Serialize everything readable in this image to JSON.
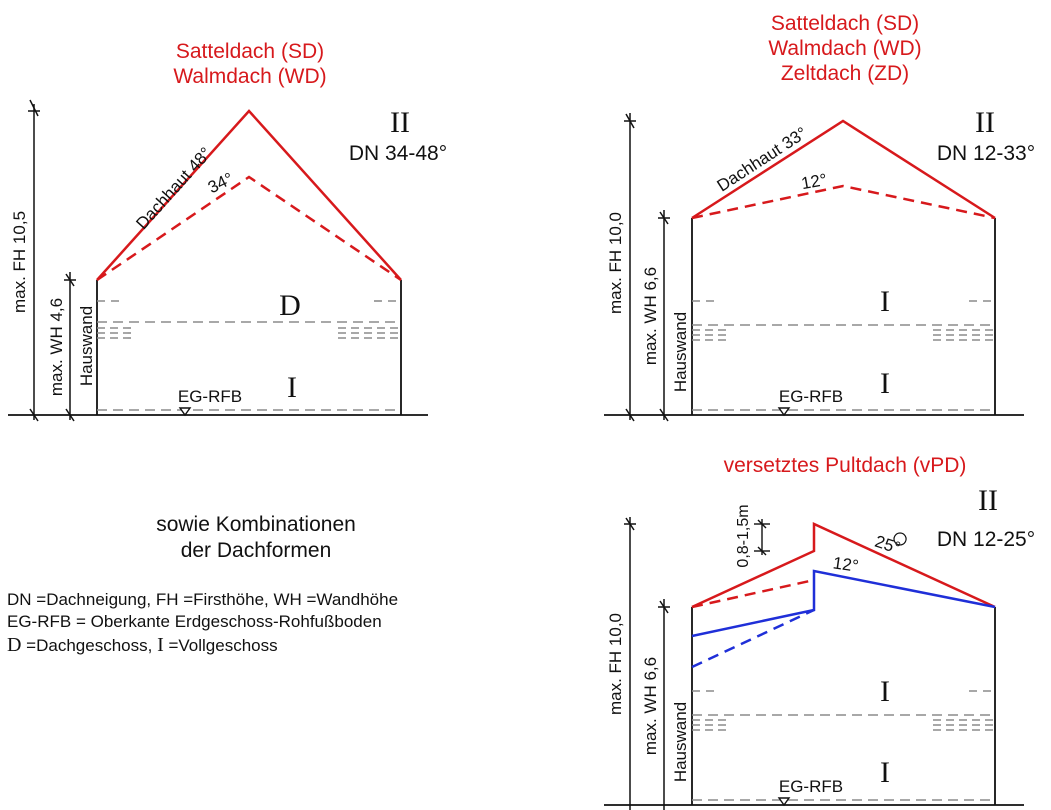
{
  "colors": {
    "red": "#d7191c",
    "blue": "#1f2fd8",
    "gray": "#8c8c8c",
    "black": "#111111"
  },
  "diagram_sd_wd": {
    "title_line1": "Satteldach (SD)",
    "title_line2": "Walmdach (WD)",
    "storeys_label": "II",
    "roof_pitch": "DN 34-48°",
    "roof_skin_label": "Dachhaut 48°",
    "min_angle_label": "34°",
    "ridge_height_label": "max. FH 10,5",
    "wall_height_label": "max. WH 4,6",
    "house_wall_label": "Hauswand",
    "attic_symbol": "D",
    "full_storey_symbol": "I",
    "ground_floor_label": "EG-RFB"
  },
  "diagram_sd_wd_zd": {
    "title_line1": "Satteldach (SD)",
    "title_line2": "Walmdach (WD)",
    "title_line3": "Zeltdach (ZD)",
    "storeys_label": "II",
    "roof_pitch": "DN 12-33°",
    "roof_skin_label": "Dachhaut 33°",
    "min_angle_label": "12°",
    "ridge_height_label": "max. FH 10,0",
    "wall_height_label": "max. WH 6,6",
    "house_wall_label": "Hauswand",
    "upper_storey_symbol": "I",
    "lower_storey_symbol": "I",
    "ground_floor_label": "EG-RFB"
  },
  "diagram_vpd": {
    "title": "versetztes Pultdach (vPD)",
    "storeys_label": "II",
    "roof_pitch": "DN 12-25°",
    "max_angle_label": "25°",
    "min_angle_label": "12°",
    "offset_label": "0,8-1,5m",
    "ridge_height_label": "max. FH 10,0",
    "wall_height_label": "max. WH 6,6",
    "house_wall_label": "Hauswand",
    "upper_storey_symbol": "I",
    "lower_storey_symbol": "I",
    "ground_floor_label": "EG-RFB"
  },
  "notes": {
    "combinations_line1": "sowie Kombinationen",
    "combinations_line2": "der Dachformen",
    "legend_line1": "DN =Dachneigung, FH =Firsthöhe, WH =Wandhöhe",
    "legend_line2": "EG-RFB = Oberkante Erdgeschoss-Rohfußboden",
    "legend_line3_symbol_d": "D",
    "legend_line3_text_d": " =Dachgeschoss, ",
    "legend_line3_symbol_i": "I",
    "legend_line3_text_i": " =Vollgeschoss"
  }
}
